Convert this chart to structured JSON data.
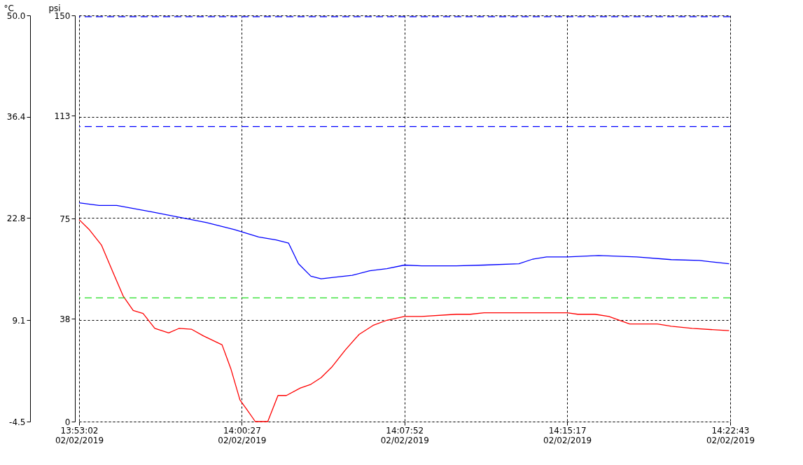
{
  "chart_data": {
    "type": "line",
    "ylabel": "°C",
    "y2label": "psi",
    "xlim": [
      "2019-02-02T13:53:02",
      "2019-02-02T14:22:43"
    ],
    "xticks": [
      {
        "value": "2019-02-02T13:53:02",
        "label": "13:53:02\n02/02/2019"
      },
      {
        "value": "2019-02-02T14:00:27",
        "label": "14:00:27\n02/02/2019"
      },
      {
        "value": "2019-02-02T14:07:52",
        "label": "14:07:52\n02/02/2019"
      },
      {
        "value": "2019-02-02T14:15:17",
        "label": "14:15:17\n02/02/2019"
      },
      {
        "value": "2019-02-02T14:22:43",
        "label": "14:22:43\n02/02/2019"
      }
    ],
    "ylim": [
      -4.5,
      50
    ],
    "yticks": [
      {
        "value": 50,
        "label": "50.0"
      },
      36.4,
      22.8,
      9.1,
      -4.5
    ],
    "y2lim": [
      0,
      150
    ],
    "y2ticks": [
      150,
      113,
      75,
      38,
      0
    ],
    "grid": true,
    "series": [
      {
        "color": "#ff0000",
        "axis": "y",
        "x": [
          "2019-02-02T13:53:02",
          "2019-02-02T13:53:29",
          "2019-02-02T13:54:03",
          "2019-02-02T13:54:35",
          "2019-02-02T13:55:03",
          "2019-02-02T13:55:30",
          "2019-02-02T13:55:57",
          "2019-02-02T13:56:29",
          "2019-02-02T13:57:07",
          "2019-02-02T13:57:35",
          "2019-02-02T13:58:09",
          "2019-02-02T13:58:42",
          "2019-02-02T13:59:33",
          "2019-02-02T13:59:57",
          "2019-02-02T14:00:22",
          "2019-02-02T14:00:41",
          "2019-02-02T14:01:04",
          "2019-02-02T14:01:38",
          "2019-02-02T14:02:06",
          "2019-02-02T14:02:29",
          "2019-02-02T14:03:07",
          "2019-02-02T14:03:36",
          "2019-02-02T14:04:04",
          "2019-02-02T14:04:33",
          "2019-02-02T14:05:10",
          "2019-02-02T14:05:48",
          "2019-02-02T14:06:26",
          "2019-02-02T14:07:04",
          "2019-02-02T14:07:52",
          "2019-02-02T14:08:39",
          "2019-02-02T14:10:14",
          "2019-02-02T14:10:52",
          "2019-02-02T14:11:30",
          "2019-02-02T14:13:24",
          "2019-02-02T14:15:17",
          "2019-02-02T14:15:46",
          "2019-02-02T14:16:33",
          "2019-02-02T14:17:11",
          "2019-02-02T14:18:08",
          "2019-02-02T14:19:24",
          "2019-02-02T14:20:02",
          "2019-02-02T14:20:59",
          "2019-02-02T14:22:40"
        ],
        "values": [
          22.6,
          21.3,
          19.2,
          15.5,
          12.3,
          10.4,
          10.0,
          8.0,
          7.4,
          8.0,
          7.9,
          7.0,
          5.8,
          2.6,
          -1.6,
          -2.9,
          -4.5,
          -4.5,
          -1.0,
          -1.0,
          0.0,
          0.5,
          1.4,
          2.8,
          5.1,
          7.2,
          8.4,
          9.1,
          9.6,
          9.6,
          9.9,
          9.9,
          10.1,
          10.1,
          10.1,
          9.9,
          9.9,
          9.6,
          8.6,
          8.6,
          8.3,
          8.0,
          7.7
        ]
      },
      {
        "color": "#0000ff",
        "axis": "y2",
        "x": [
          "2019-02-02T13:53:02",
          "2019-02-02T13:53:57",
          "2019-02-02T13:54:45",
          "2019-02-02T13:56:19",
          "2019-02-02T13:57:35",
          "2019-02-02T13:58:51",
          "2019-02-02T14:00:07",
          "2019-02-02T14:01:13",
          "2019-02-02T14:02:01",
          "2019-02-02T14:02:35",
          "2019-02-02T14:03:02",
          "2019-02-02T14:03:36",
          "2019-02-02T14:04:04",
          "2019-02-02T14:04:33",
          "2019-02-02T14:05:29",
          "2019-02-02T14:06:17",
          "2019-02-02T14:07:04",
          "2019-02-02T14:07:52",
          "2019-02-02T14:08:39",
          "2019-02-02T14:10:14",
          "2019-02-02T14:11:30",
          "2019-02-02T14:13:05",
          "2019-02-02T14:13:43",
          "2019-02-02T14:14:21",
          "2019-02-02T14:15:17",
          "2019-02-02T14:16:43",
          "2019-02-02T14:18:27",
          "2019-02-02T14:20:02",
          "2019-02-02T14:21:18",
          "2019-02-02T14:22:40"
        ],
        "values": [
          80.8,
          79.8,
          79.8,
          77.5,
          75.5,
          73.5,
          70.9,
          68.2,
          67.1,
          65.9,
          58.3,
          53.7,
          52.7,
          53.2,
          54.0,
          55.7,
          56.5,
          57.8,
          57.5,
          57.5,
          57.8,
          58.3,
          60.0,
          60.8,
          60.8,
          61.3,
          60.8,
          59.8,
          59.5,
          58.3
        ]
      }
    ],
    "ref_lines": [
      {
        "axis": "y2",
        "value": 149.5,
        "color": "#0000ff",
        "line_style": "dashed"
      },
      {
        "axis": "y2",
        "value": 109,
        "color": "#0000ff",
        "line_style": "dashed"
      },
      {
        "axis": "y",
        "value": 12.1,
        "color": "#22dd22",
        "line_style": "dashed"
      }
    ]
  }
}
